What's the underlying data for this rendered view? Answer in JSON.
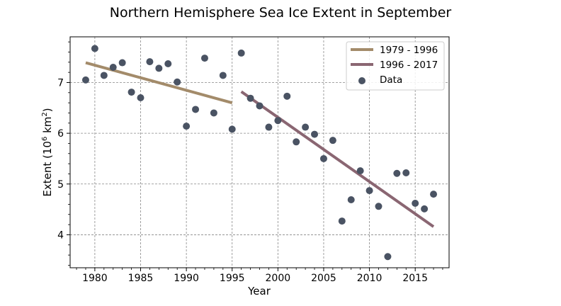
{
  "chart_data": {
    "type": "scatter",
    "title": "Northern Hemisphere Sea Ice Extent in September",
    "xlabel": "Year",
    "ylabel_prefix": "Extent (10",
    "ylabel_exp": "6",
    "ylabel_unit": " km",
    "ylabel_unit_exp": "2",
    "ylabel_suffix": ")",
    "xlim": [
      1977.3,
      2018.7
    ],
    "ylim": [
      3.35,
      7.9
    ],
    "xticks": [
      1980,
      1985,
      1990,
      1995,
      2000,
      2005,
      2010,
      2015
    ],
    "yticks": [
      4,
      5,
      6,
      7
    ],
    "grid": true,
    "legend_position": "top-right",
    "points": {
      "name": "Data",
      "color": "#4a5363",
      "x": [
        1979,
        1980,
        1981,
        1982,
        1983,
        1984,
        1985,
        1986,
        1987,
        1988,
        1989,
        1990,
        1991,
        1992,
        1993,
        1994,
        1995,
        1996,
        1997,
        1998,
        1999,
        2000,
        2001,
        2002,
        2003,
        2004,
        2005,
        2006,
        2007,
        2008,
        2009,
        2010,
        2011,
        2012,
        2013,
        2014,
        2015,
        2016,
        2017
      ],
      "y": [
        7.05,
        7.67,
        7.14,
        7.3,
        7.39,
        6.81,
        6.7,
        7.41,
        7.28,
        7.37,
        7.01,
        6.14,
        6.47,
        7.48,
        6.4,
        7.14,
        6.08,
        7.58,
        6.69,
        6.54,
        6.12,
        6.25,
        6.73,
        5.83,
        6.12,
        5.98,
        5.5,
        5.86,
        4.27,
        4.69,
        5.26,
        4.87,
        4.56,
        3.57,
        5.21,
        5.22,
        4.62,
        4.51,
        4.8
      ]
    },
    "trendlines": [
      {
        "name": "1979 - 1996",
        "color": "#a38b6a",
        "x": [
          1979,
          1995
        ],
        "y": [
          7.39,
          6.6
        ]
      },
      {
        "name": "1996 - 2017",
        "color": "#8a6672",
        "x": [
          1996,
          2017
        ],
        "y": [
          6.82,
          4.16
        ]
      }
    ]
  }
}
